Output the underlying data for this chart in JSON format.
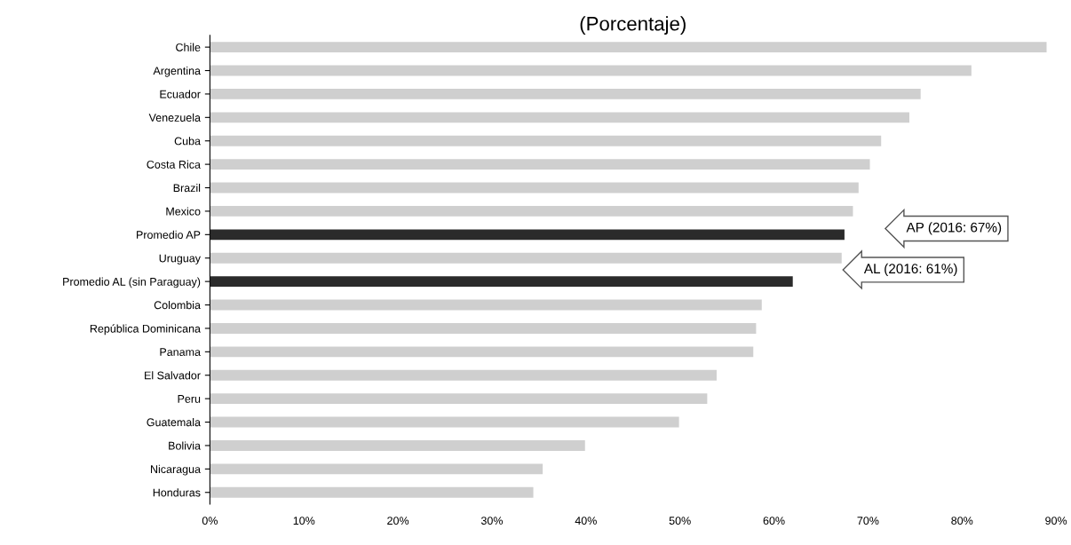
{
  "chart_data": {
    "type": "bar",
    "orientation": "horizontal",
    "title": "(Porcentaje)",
    "categories": [
      "Chile",
      "Argentina",
      "Ecuador",
      "Venezuela",
      "Cuba",
      "Costa Rica",
      "Brazil",
      "Mexico",
      "Promedio AP",
      "Uruguay",
      "Promedio AL (sin Paraguay)",
      "Colombia",
      "República Dominicana",
      "Panama",
      "El Salvador",
      "Peru",
      "Guatemala",
      "Bolivia",
      "Nicaragua",
      "Honduras"
    ],
    "values": [
      89,
      81,
      75.6,
      74.4,
      71.4,
      70.2,
      69,
      68.4,
      67.5,
      67.2,
      62,
      58.7,
      58.1,
      57.8,
      53.9,
      52.9,
      49.9,
      39.9,
      35.4,
      34.4
    ],
    "colors": [
      "#cfcfcf",
      "#cfcfcf",
      "#cfcfcf",
      "#cfcfcf",
      "#cfcfcf",
      "#cfcfcf",
      "#cfcfcf",
      "#cfcfcf",
      "#2b2b2b",
      "#cfcfcf",
      "#2b2b2b",
      "#cfcfcf",
      "#cfcfcf",
      "#cfcfcf",
      "#cfcfcf",
      "#cfcfcf",
      "#cfcfcf",
      "#cfcfcf",
      "#cfcfcf",
      "#cfcfcf"
    ],
    "xlim": [
      0,
      90
    ],
    "xticks": [
      {
        "value": 0,
        "label": "0%"
      },
      {
        "value": 10,
        "label": "10%"
      },
      {
        "value": 20,
        "label": "20%"
      },
      {
        "value": 30,
        "label": "30%"
      },
      {
        "value": 40,
        "label": "40%"
      },
      {
        "value": 50,
        "label": "50%"
      },
      {
        "value": 60,
        "label": "60%"
      },
      {
        "value": 70,
        "label": "70%"
      },
      {
        "value": 80,
        "label": "80%"
      },
      {
        "value": 90,
        "label": "90%"
      }
    ],
    "annotations": [
      "AP (2016: 67%)",
      "AL (2016: 61%)"
    ],
    "grid": false,
    "legend": false
  }
}
